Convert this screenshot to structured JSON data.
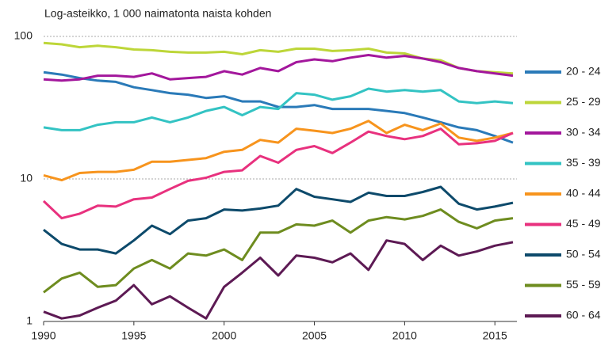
{
  "chart_data": {
    "type": "line",
    "title": "Log-asteikko, 1 000 naimatonta naista kohden",
    "x": [
      1990,
      1991,
      1992,
      1993,
      1994,
      1995,
      1996,
      1997,
      1998,
      1999,
      2000,
      2001,
      2002,
      2003,
      2004,
      2005,
      2006,
      2007,
      2008,
      2009,
      2010,
      2011,
      2012,
      2013,
      2014,
      2015,
      2016
    ],
    "xlim": [
      1990,
      2016
    ],
    "xticks": [
      1990,
      1995,
      2000,
      2005,
      2010,
      2015
    ],
    "ylim": [
      1,
      100
    ],
    "yticks": [
      1,
      10,
      100
    ],
    "log_scale": true,
    "grid": true,
    "legend": "right",
    "series": [
      {
        "name": "20 - 24",
        "color": "#2a7ab8",
        "values": [
          56,
          54,
          51,
          49,
          48,
          44,
          42,
          40,
          39,
          37,
          38,
          35,
          35,
          32,
          32,
          33,
          31,
          31,
          31,
          30,
          29,
          27,
          25,
          23,
          22,
          20,
          18
        ]
      },
      {
        "name": "25 - 29",
        "color": "#bdd639",
        "values": [
          90,
          88,
          84,
          86,
          84,
          81,
          80,
          78,
          77,
          77,
          78,
          75,
          80,
          78,
          82,
          82,
          79,
          80,
          82,
          77,
          76,
          70,
          68,
          60,
          57,
          56,
          55
        ]
      },
      {
        "name": "30 - 34",
        "color": "#a3179c",
        "values": [
          50,
          49,
          50,
          53,
          53,
          52,
          55,
          50,
          51,
          52,
          57,
          54,
          60,
          57,
          66,
          69,
          67,
          71,
          74,
          71,
          73,
          70,
          66,
          60,
          57,
          55,
          53
        ]
      },
      {
        "name": "35 - 39",
        "color": "#33c3c3",
        "values": [
          23,
          22,
          22,
          24,
          25,
          25,
          27,
          25,
          27,
          30,
          32,
          28,
          32,
          31,
          40,
          39,
          36,
          38,
          43,
          41,
          42,
          41,
          42,
          35,
          34,
          35,
          34
        ]
      },
      {
        "name": "40 - 44",
        "color": "#f7941d",
        "values": [
          10.6,
          9.8,
          11,
          11.2,
          11.2,
          11.6,
          13.2,
          13.2,
          13.6,
          14,
          15.5,
          16,
          18.8,
          18,
          22.5,
          21.8,
          21,
          22.5,
          25.5,
          21,
          24,
          22,
          24.5,
          19.5,
          18.5,
          19.5,
          21
        ]
      },
      {
        "name": "45 - 49",
        "color": "#e8317e",
        "values": [
          7,
          5.3,
          5.7,
          6.5,
          6.4,
          7.2,
          7.4,
          8.5,
          9.7,
          10.2,
          11.2,
          11.5,
          14.5,
          13,
          16,
          17,
          15.2,
          18,
          21.5,
          20,
          19,
          20,
          22.5,
          17.5,
          17.8,
          18.5,
          21
        ]
      },
      {
        "name": "50 - 54",
        "color": "#0d4a6b",
        "values": [
          4.4,
          3.5,
          3.2,
          3.2,
          3.0,
          3.7,
          4.7,
          4.1,
          5.1,
          5.3,
          6.1,
          6.0,
          6.2,
          6.5,
          8.5,
          7.5,
          7.2,
          6.9,
          8.0,
          7.6,
          7.6,
          8.1,
          8.8,
          6.7,
          6.1,
          6.4,
          6.8
        ]
      },
      {
        "name": "55 - 59",
        "color": "#6e8c1f",
        "values": [
          1.6,
          2.0,
          2.2,
          1.75,
          1.8,
          2.35,
          2.7,
          2.35,
          3.0,
          2.9,
          3.2,
          2.7,
          4.2,
          4.2,
          4.8,
          4.7,
          5.1,
          4.2,
          5.1,
          5.4,
          5.2,
          5.5,
          6.1,
          5.0,
          4.5,
          5.1,
          5.3
        ]
      },
      {
        "name": "60 - 64",
        "color": "#5d1a54",
        "values": [
          1.17,
          1.05,
          1.1,
          1.25,
          1.4,
          1.8,
          1.32,
          1.5,
          1.25,
          1.05,
          1.75,
          2.2,
          2.8,
          2.1,
          2.9,
          2.8,
          2.6,
          3.0,
          2.3,
          3.7,
          3.5,
          2.7,
          3.4,
          2.9,
          3.1,
          3.4,
          3.6
        ]
      }
    ]
  }
}
